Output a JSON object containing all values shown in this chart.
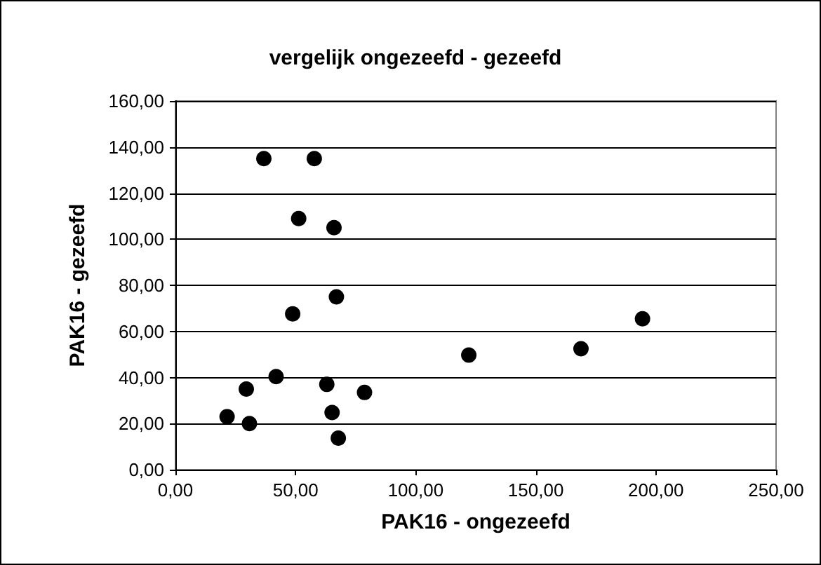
{
  "chart_data": {
    "type": "scatter",
    "title": "vergelijk ongezeefd - gezeefd",
    "xlabel": "PAK16 - ongezeefd",
    "ylabel": "PAK16 - gezeefd",
    "x": [
      36.8,
      57.8,
      51.3,
      66,
      67,
      48.8,
      41.9,
      29.5,
      63,
      78.7,
      21.5,
      30.8,
      65.2,
      67.8,
      122.1,
      168.8,
      194.4
    ],
    "values": [
      135,
      135,
      109,
      105,
      75,
      67.6,
      40.4,
      35,
      37,
      33.5,
      23,
      20,
      24.8,
      13.7,
      49.7,
      52.5,
      65.5
    ],
    "color": "#000000",
    "marker": "circle",
    "xlim": [
      0,
      250
    ],
    "ylim": [
      0,
      160
    ],
    "xticks": [
      {
        "value": 0,
        "label": "0,00"
      },
      {
        "value": 50,
        "label": "50,00"
      },
      {
        "value": 100,
        "label": "100,00"
      },
      {
        "value": 150,
        "label": "150,00"
      },
      {
        "value": 200,
        "label": "200,00"
      },
      {
        "value": 250,
        "label": "250,00"
      }
    ],
    "yticks": [
      {
        "value": 0,
        "label": "0,00"
      },
      {
        "value": 20,
        "label": "20,00"
      },
      {
        "value": 40,
        "label": "40,00"
      },
      {
        "value": 60,
        "label": "60,00"
      },
      {
        "value": 80,
        "label": "80,00"
      },
      {
        "value": 100,
        "label": "100,00"
      },
      {
        "value": 120,
        "label": "120,00"
      },
      {
        "value": 140,
        "label": "140,00"
      },
      {
        "value": 160,
        "label": "160,00"
      }
    ],
    "grid": "y"
  }
}
